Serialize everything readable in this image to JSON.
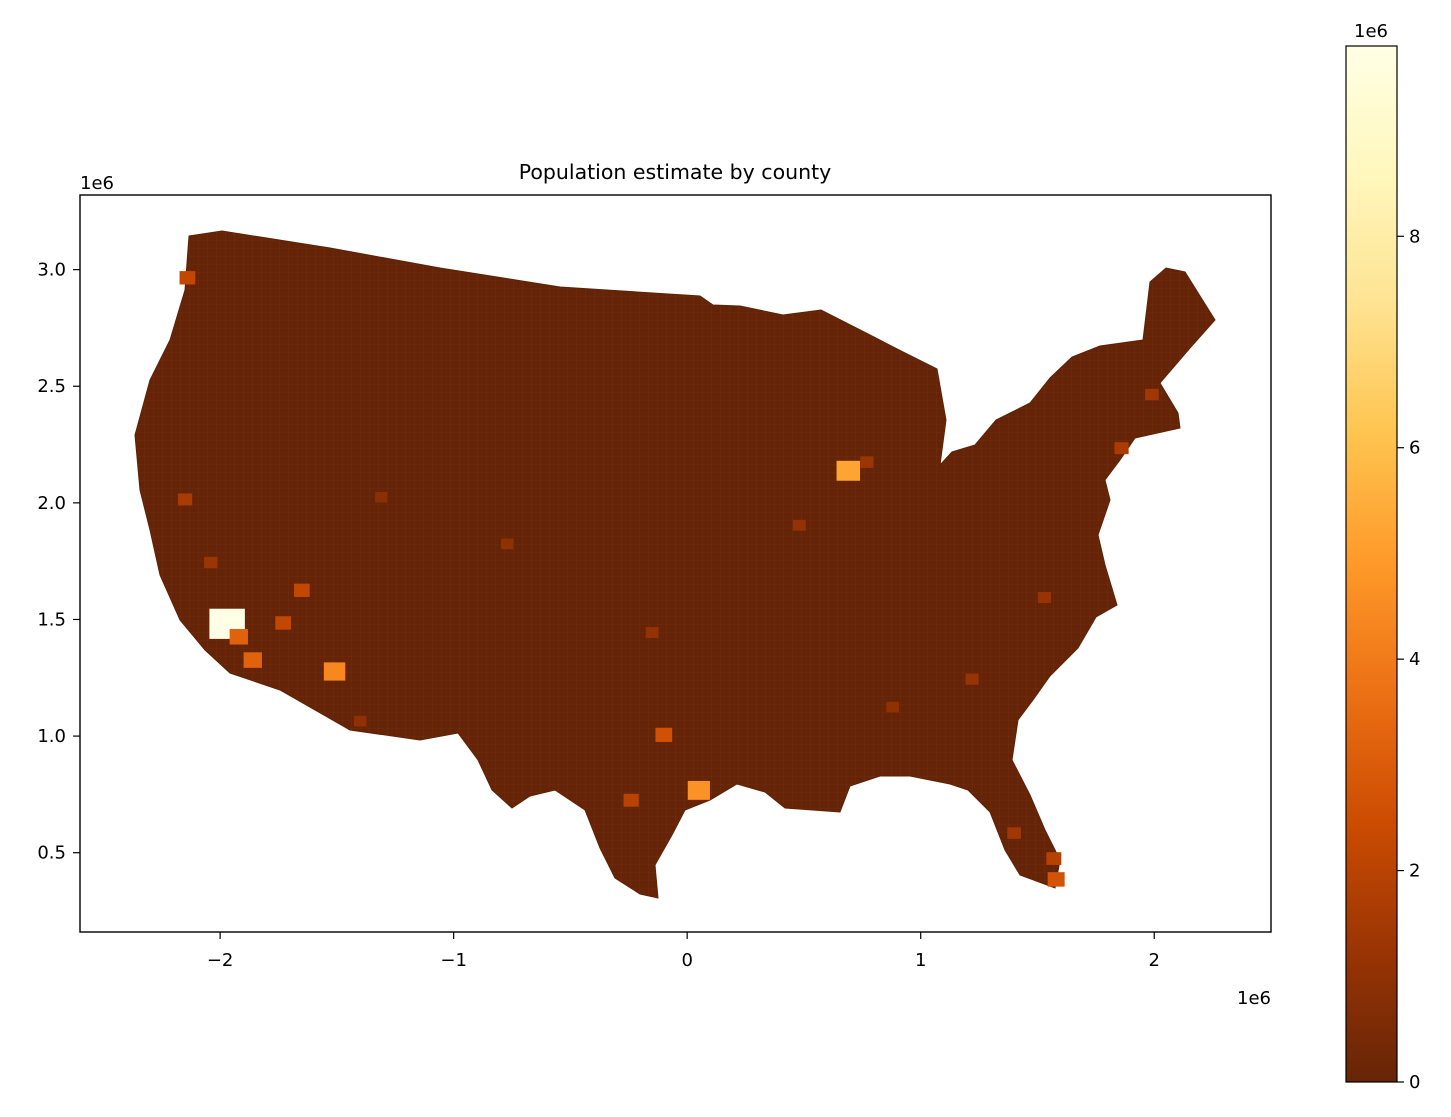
{
  "chart_data": {
    "type": "choropleth-map",
    "title": "Population estimate by county",
    "xlabel": "",
    "ylabel": "",
    "x_offset_label": "1e6",
    "y_offset_label": "1e6",
    "xlim": [
      -2.6,
      2.5
    ],
    "ylim": [
      0.16,
      3.32
    ],
    "xticks": [
      {
        "value": -2,
        "label": "−2"
      },
      {
        "value": -1,
        "label": "−1"
      },
      {
        "value": 0,
        "label": "0"
      },
      {
        "value": 1,
        "label": "1"
      },
      {
        "value": 2,
        "label": "2"
      }
    ],
    "yticks": [
      {
        "value": 0.5,
        "label": "0.5"
      },
      {
        "value": 1.0,
        "label": "1.0"
      },
      {
        "value": 1.5,
        "label": "1.5"
      },
      {
        "value": 2.0,
        "label": "2.0"
      },
      {
        "value": 2.5,
        "label": "2.5"
      },
      {
        "value": 3.0,
        "label": "3.0"
      }
    ],
    "grid": false,
    "colorbar": {
      "placement": "right",
      "offset_label": "1e6",
      "range": [
        0,
        9.8
      ],
      "ticks": [
        {
          "value": 0,
          "label": "0"
        },
        {
          "value": 2,
          "label": "2"
        },
        {
          "value": 4,
          "label": "4"
        },
        {
          "value": 6,
          "label": "6"
        },
        {
          "value": 8,
          "label": "8"
        }
      ],
      "colormap_stops": [
        "#662506",
        "#993404",
        "#cc4c02",
        "#ec7014",
        "#fe9929",
        "#fec44f",
        "#fee391",
        "#fff7bc",
        "#ffffe5"
      ]
    },
    "highlighted_counties": [
      {
        "x": -1.97,
        "y": 1.47,
        "value": 9.8
      },
      {
        "x": 0.69,
        "y": 2.13,
        "value": 5.2
      },
      {
        "x": -1.51,
        "y": 1.27,
        "value": 4.4
      },
      {
        "x": 0.05,
        "y": 0.76,
        "value": 4.7
      },
      {
        "x": -1.86,
        "y": 1.32,
        "value": 3.2
      },
      {
        "x": -1.92,
        "y": 1.42,
        "value": 3.2
      },
      {
        "x": -1.73,
        "y": 1.48,
        "value": 2.2
      },
      {
        "x": -1.65,
        "y": 1.62,
        "value": 2.2
      },
      {
        "x": 1.58,
        "y": 0.38,
        "value": 2.7
      },
      {
        "x": 1.57,
        "y": 0.47,
        "value": 1.9
      },
      {
        "x": -0.1,
        "y": 1.0,
        "value": 2.6
      },
      {
        "x": -0.24,
        "y": 0.72,
        "value": 2.0
      },
      {
        "x": -2.14,
        "y": 2.96,
        "value": 2.2
      },
      {
        "x": 1.86,
        "y": 2.23,
        "value": 1.6
      },
      {
        "x": 1.4,
        "y": 0.58,
        "value": 1.4
      },
      {
        "x": -1.4,
        "y": 1.06,
        "value": 1.0
      },
      {
        "x": -2.15,
        "y": 2.01,
        "value": 1.6
      },
      {
        "x": -2.04,
        "y": 1.74,
        "value": 1.3
      },
      {
        "x": 0.88,
        "y": 1.12,
        "value": 1.0
      },
      {
        "x": 1.53,
        "y": 1.59,
        "value": 1.2
      },
      {
        "x": -0.77,
        "y": 1.82,
        "value": 1.0
      },
      {
        "x": 0.48,
        "y": 1.9,
        "value": 1.1
      },
      {
        "x": -0.15,
        "y": 1.44,
        "value": 1.1
      },
      {
        "x": 1.22,
        "y": 1.24,
        "value": 1.2
      },
      {
        "x": 1.99,
        "y": 2.46,
        "value": 1.4
      },
      {
        "x": 0.77,
        "y": 2.17,
        "value": 1.3
      },
      {
        "x": -1.31,
        "y": 2.02,
        "value": 0.9
      }
    ]
  }
}
